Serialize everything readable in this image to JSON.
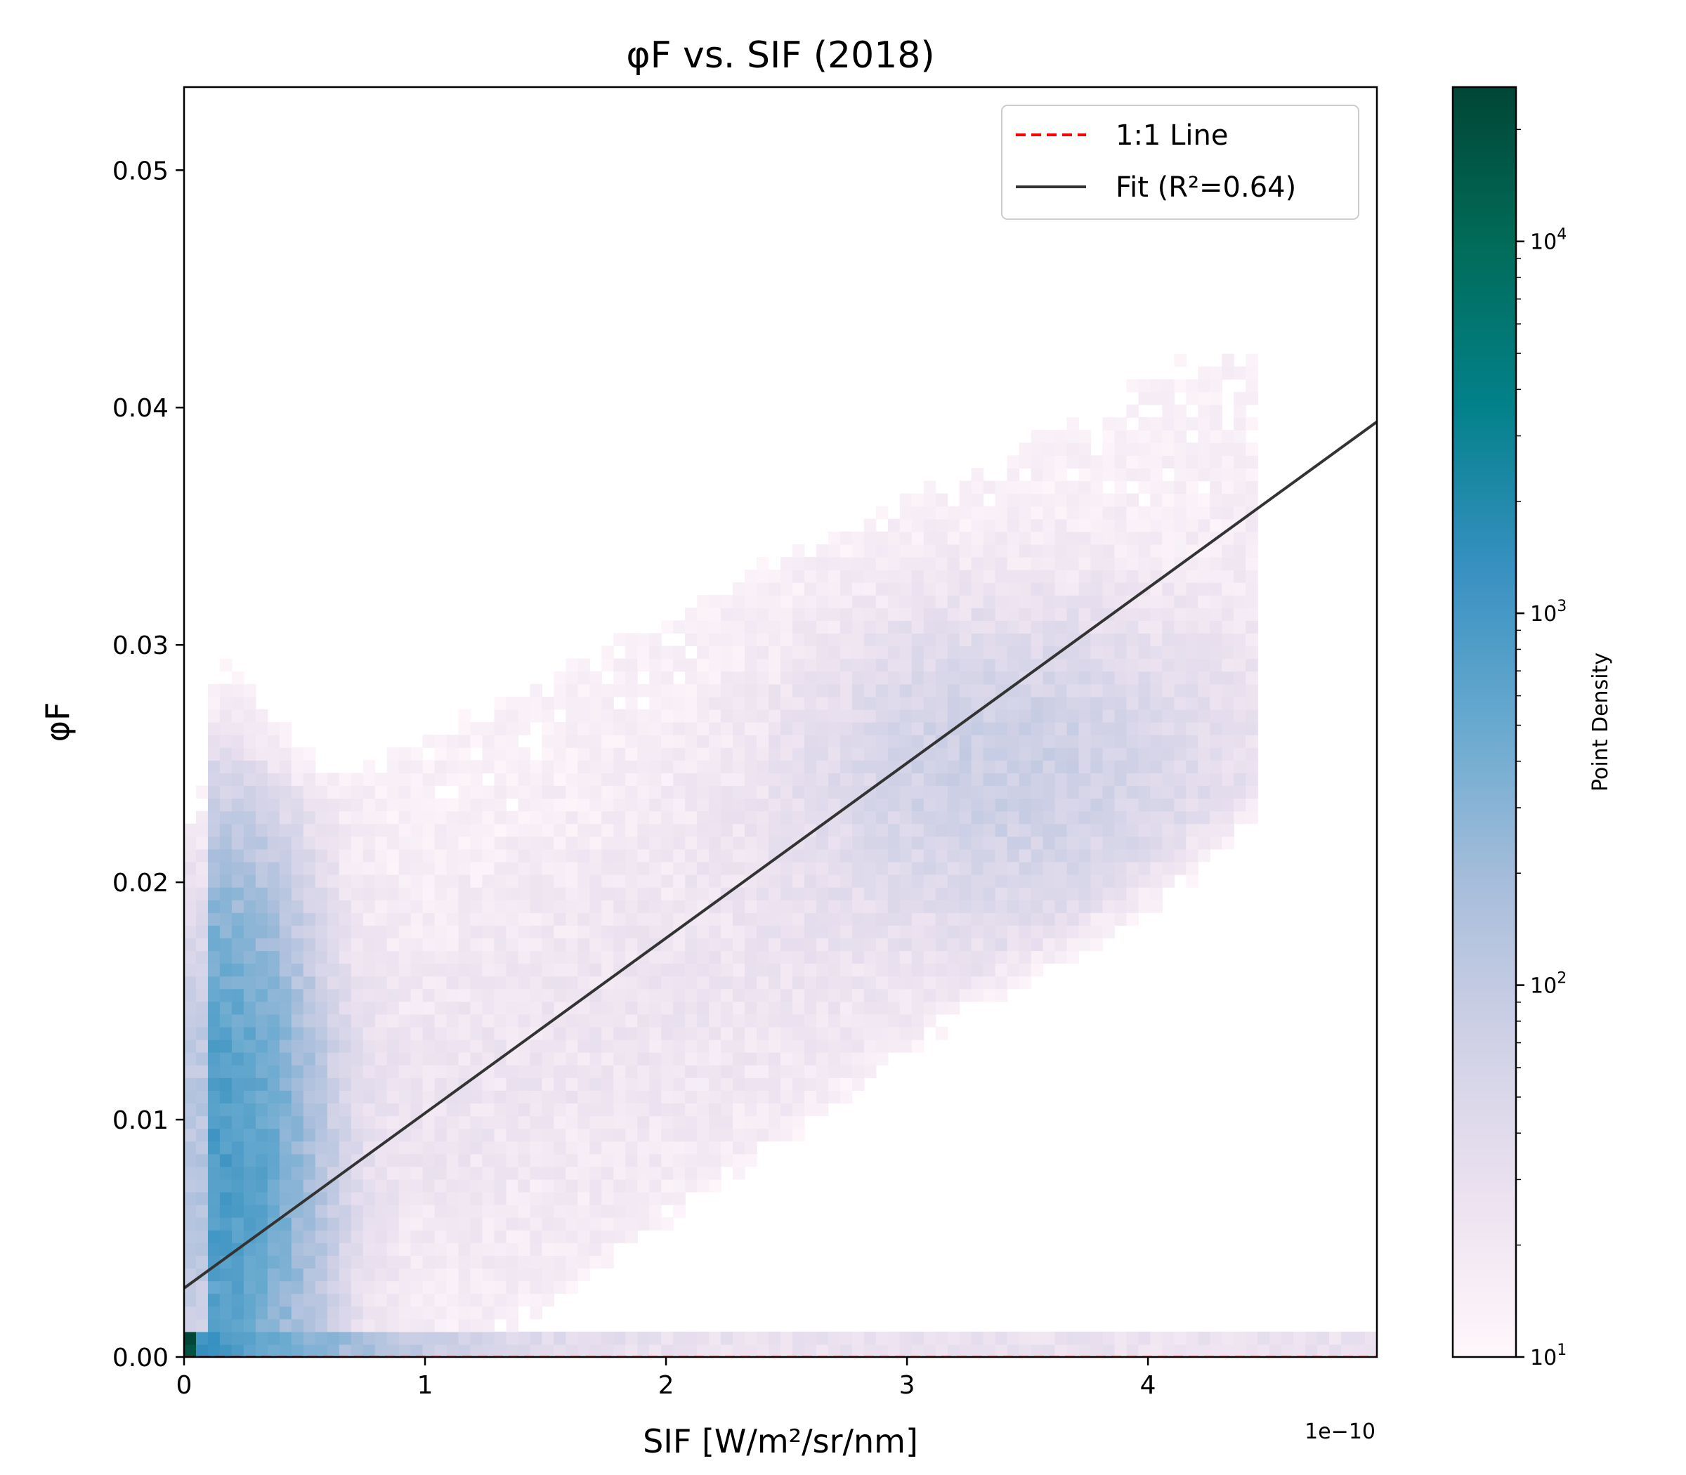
{
  "chart_data": {
    "type": "heatmap",
    "title": "φF vs. SIF (2018)",
    "xlabel": "SIF [W/m²/sr/nm]",
    "ylabel": "φF",
    "x_offset_label": "1e−10",
    "x_multiplier": 1e-10,
    "xlim": [
      0,
      4.95
    ],
    "ylim": [
      0,
      0.0535
    ],
    "x_ticks": [
      {
        "value": 0,
        "label": "0"
      },
      {
        "value": 1,
        "label": "1"
      },
      {
        "value": 2,
        "label": "2"
      },
      {
        "value": 3,
        "label": "3"
      },
      {
        "value": 4,
        "label": "4"
      }
    ],
    "y_ticks": [
      {
        "value": 0.0,
        "label": "0.00"
      },
      {
        "value": 0.01,
        "label": "0.01"
      },
      {
        "value": 0.02,
        "label": "0.02"
      },
      {
        "value": 0.03,
        "label": "0.03"
      },
      {
        "value": 0.04,
        "label": "0.04"
      },
      {
        "value": 0.05,
        "label": "0.05"
      }
    ],
    "colorbar": {
      "label": "Point Density",
      "scale": "log",
      "range": [
        10,
        26000
      ],
      "colormap": "PuBuGn",
      "ticks": [
        {
          "value": 10,
          "base": "10",
          "exp": "1"
        },
        {
          "value": 100,
          "base": "10",
          "exp": "2"
        },
        {
          "value": 1000,
          "base": "10",
          "exp": "3"
        },
        {
          "value": 10000,
          "base": "10",
          "exp": "4"
        }
      ],
      "colors": [
        "#fff7fb",
        "#ece2f0",
        "#d0d1e6",
        "#a6bddb",
        "#67a9cf",
        "#3690c0",
        "#02818a",
        "#016c59",
        "#014636"
      ]
    },
    "series": [
      {
        "name": "1:1 Line",
        "style": "dashed",
        "color": "#ff0000",
        "x": [
          0,
          4.95
        ],
        "y": [
          0,
          4.95e-10
        ]
      },
      {
        "name": "Fit (R²=0.64)",
        "style": "solid",
        "color": "#333333",
        "x": [
          0,
          4.95
        ],
        "y": [
          0.0029,
          0.0394
        ]
      }
    ],
    "legend": {
      "position": "top-right"
    },
    "grid": false
  }
}
